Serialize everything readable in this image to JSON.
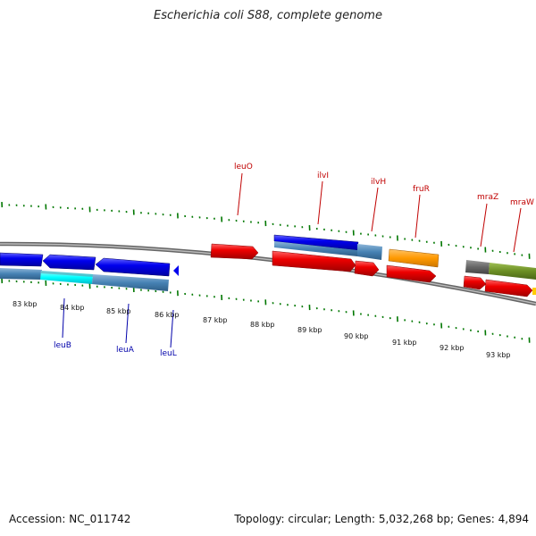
{
  "title": "Escherichia coli S88, complete genome",
  "footer": {
    "accession": "Accession: NC_011742",
    "summary": "Topology: circular; Length: 5,032,268 bp; Genes: 4,894"
  },
  "ticks": [
    "83 kbp",
    "84 kbp",
    "85 kbp",
    "86 kbp",
    "87 kbp",
    "88 kbp",
    "89 kbp",
    "90 kbp",
    "91 kbp",
    "92 kbp",
    "93 kbp"
  ],
  "gene_labels": {
    "top": [
      "leuO",
      "ilvI",
      "ilvH",
      "fruR",
      "mraZ",
      "mraW"
    ],
    "bottom": [
      "leuB",
      "leuA",
      "leuL"
    ]
  },
  "colors": {
    "forward_gene": "#ee0000",
    "reverse_gene": "#0000ee",
    "cds_bar": "#4682b4",
    "fruR_gene": "#ff9900",
    "mraW_gene": "#6b8e23",
    "mraZ_gene": "#666666",
    "highlight_cds": "#00ffff",
    "backbone": "#888888",
    "tick_marks": "#007700",
    "top_label": "#c00000",
    "bottom_label": "#0000aa"
  }
}
